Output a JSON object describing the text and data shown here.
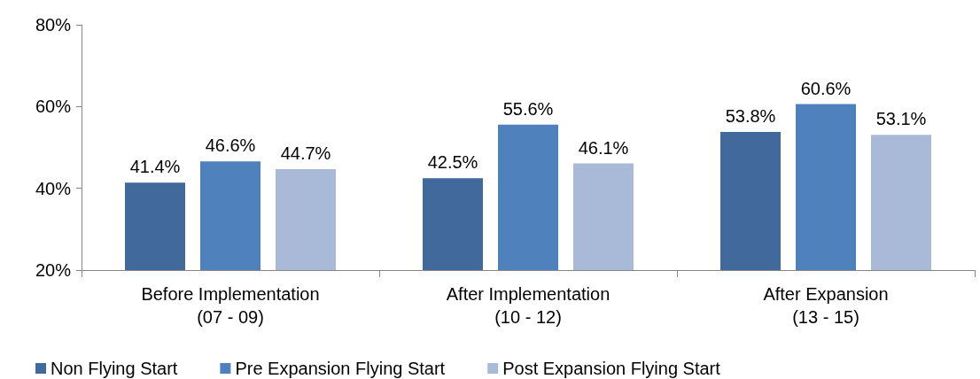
{
  "chart_data": {
    "type": "bar",
    "categories": [
      "Before Implementation\n(07 - 09)",
      "After Implementation\n(10 - 12)",
      "After Expansion\n(13 - 15)"
    ],
    "series": [
      {
        "name": "Non Flying Start",
        "color": "#41699b",
        "values": [
          41.4,
          42.5,
          53.8
        ],
        "value_labels": [
          "41.4%",
          "42.5%",
          "53.8%"
        ]
      },
      {
        "name": "Pre Expansion Flying Start",
        "color": "#4f81bd",
        "values": [
          46.6,
          55.6,
          60.6
        ],
        "value_labels": [
          "46.6%",
          "55.6%",
          "60.6%"
        ]
      },
      {
        "name": "Post Expansion Flying Start",
        "color": "#a9bad8",
        "values": [
          44.7,
          46.1,
          53.1
        ],
        "value_labels": [
          "44.7%",
          "46.1%",
          "53.1%"
        ]
      }
    ],
    "ylim": [
      20,
      80
    ],
    "yticks": [
      {
        "value": 20,
        "label": "20%"
      },
      {
        "value": 40,
        "label": "40%"
      },
      {
        "value": 60,
        "label": "60%"
      },
      {
        "value": 80,
        "label": "80%"
      }
    ],
    "grid": false,
    "legend": "bottom"
  }
}
